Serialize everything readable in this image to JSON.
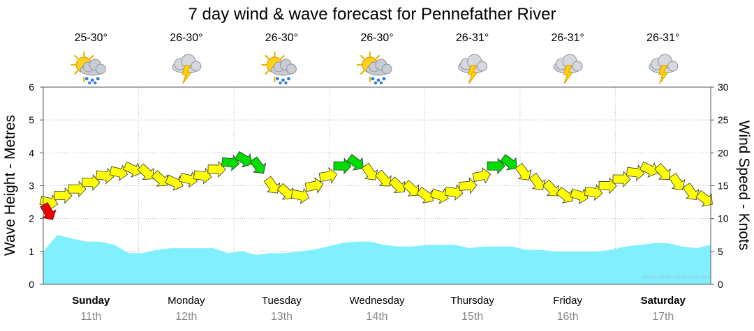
{
  "chart_data": {
    "type": "area",
    "title": "7 day wind & wave forecast for Pennefather River",
    "ylabel_left": "Wave Height - Metres",
    "ylabel_right": "Wind Speed - Knots",
    "ylim_left": [
      0,
      6
    ],
    "ylim_right": [
      0,
      30
    ],
    "yticks_left": [
      "0",
      "1",
      "2",
      "3",
      "4",
      "5",
      "6"
    ],
    "yticks_right": [
      "0",
      "5",
      "10",
      "15",
      "20",
      "25",
      "30"
    ],
    "grid": true,
    "credit": "www.seabreeze.com.au",
    "days": [
      {
        "name": "Sunday",
        "date": "11th",
        "bold": true,
        "temp": "25-30°",
        "icon": "sun-cloud-rain-icon"
      },
      {
        "name": "Monday",
        "date": "12th",
        "bold": false,
        "temp": "26-30°",
        "icon": "cloud-storm-icon"
      },
      {
        "name": "Tuesday",
        "date": "13th",
        "bold": false,
        "temp": "26-30°",
        "icon": "sun-cloud-rain-icon"
      },
      {
        "name": "Wednesday",
        "date": "14th",
        "bold": false,
        "temp": "26-30°",
        "icon": "sun-cloud-rain-icon"
      },
      {
        "name": "Thursday",
        "date": "15th",
        "bold": false,
        "temp": "26-31°",
        "icon": "cloud-storm-icon"
      },
      {
        "name": "Friday",
        "date": "16th",
        "bold": false,
        "temp": "26-31°",
        "icon": "cloud-storm-icon"
      },
      {
        "name": "Saturday",
        "date": "17th",
        "bold": true,
        "temp": "26-31°",
        "icon": "cloud-storm-icon"
      }
    ],
    "series": [
      {
        "name": "Wave Height",
        "unit": "m",
        "color": "#80f0ff",
        "values": [
          1.0,
          1.5,
          1.4,
          1.3,
          1.3,
          1.2,
          0.95,
          0.95,
          1.05,
          1.1,
          1.1,
          1.1,
          1.1,
          0.95,
          1.0,
          0.9,
          0.95,
          0.95,
          1.0,
          1.05,
          1.15,
          1.25,
          1.3,
          1.3,
          1.2,
          1.15,
          1.15,
          1.2,
          1.2,
          1.2,
          1.1,
          1.15,
          1.15,
          1.15,
          1.05,
          1.05,
          1.0,
          1.0,
          1.0,
          1.0,
          1.05,
          1.15,
          1.2,
          1.25,
          1.25,
          1.15,
          1.1,
          1.2
        ]
      },
      {
        "name": "Wind Speed",
        "unit": "knots",
        "values": [
          12.5,
          13.5,
          14.5,
          15.5,
          16.5,
          17,
          17.5,
          17,
          16,
          15.5,
          16,
          16.5,
          17.5,
          18.5,
          19,
          18,
          15,
          14,
          13.5,
          15,
          16.5,
          18,
          18.5,
          17,
          16,
          15,
          14.5,
          13.5,
          13.5,
          14,
          15,
          16.5,
          18,
          18.5,
          17,
          15.5,
          14.5,
          13.5,
          13.5,
          14,
          15,
          16,
          17,
          17.5,
          17,
          15.5,
          14,
          13
        ]
      }
    ],
    "wind_colors": {
      "light": "#ffff00",
      "strong": "#00dd00",
      "gale": "#ee0000"
    }
  }
}
